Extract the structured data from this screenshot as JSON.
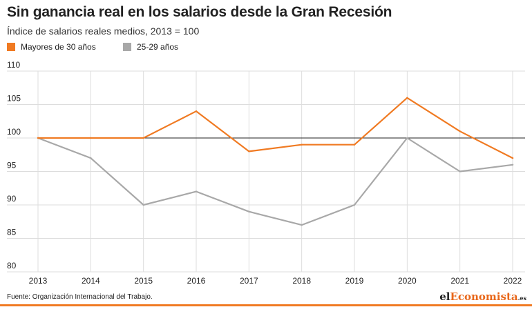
{
  "header": {
    "title": "Sin ganancia real en los salarios desde la Gran Recesión",
    "subtitle": "Índice de salarios reales medios, 2013 = 100"
  },
  "footer": {
    "source": "Fuente: Organización Internacional del Trabajo.",
    "brand_prefix": "el",
    "brand_accent": "Economista",
    "brand_suffix": ".es"
  },
  "colors": {
    "series_orange": "#f07a22",
    "series_gray": "#a8a8a8",
    "grid": "#dddddd",
    "baseline": "#222222"
  },
  "chart_data": {
    "type": "line",
    "x": [
      "2013",
      "2014",
      "2015",
      "2016",
      "2017",
      "2018",
      "2019",
      "2020",
      "2021",
      "2022"
    ],
    "ylim": [
      80,
      110
    ],
    "yticks": [
      80,
      85,
      90,
      95,
      100,
      105,
      110
    ],
    "grid": true,
    "reference_line": 100,
    "legend_position": "top-left",
    "series": [
      {
        "name": "Mayores de 30 años",
        "color": "#f07a22",
        "values": [
          100,
          100,
          100,
          104,
          98,
          99,
          99,
          106,
          101,
          97
        ]
      },
      {
        "name": "25-29 años",
        "color": "#a8a8a8",
        "values": [
          100,
          97,
          90,
          92,
          89,
          87,
          90,
          100,
          95,
          96
        ]
      }
    ]
  }
}
